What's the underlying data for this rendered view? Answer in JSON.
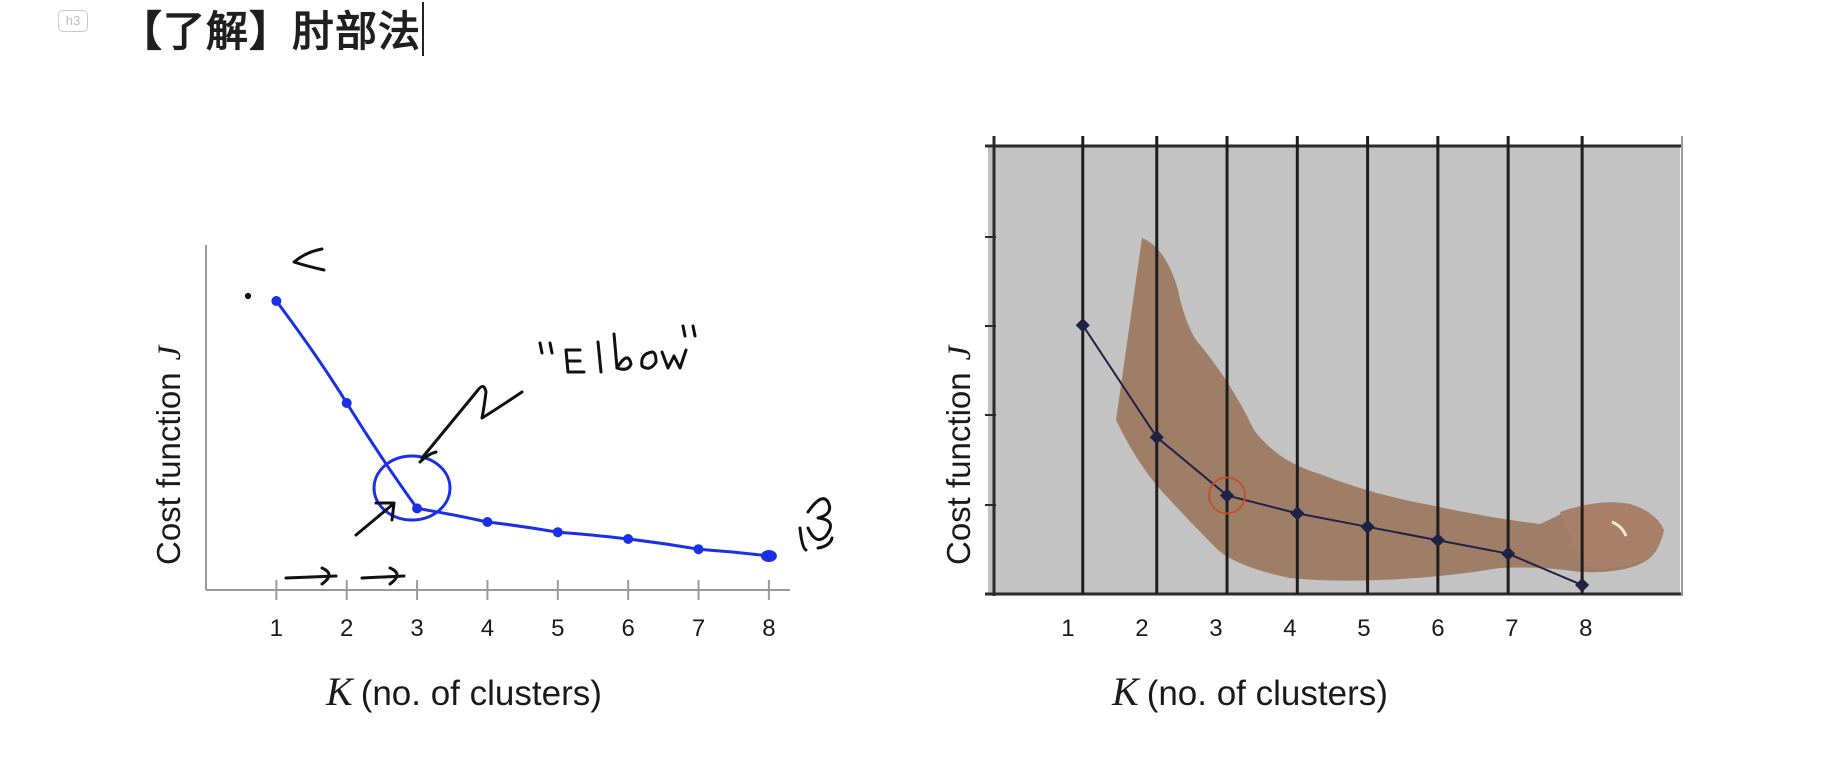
{
  "header": {
    "badge": "h3",
    "title": "【了解】肘部法"
  },
  "chart_data": [
    {
      "type": "line",
      "title": "",
      "ylabel": "Cost function",
      "ylabel_symbol": "J",
      "xlabel_symbol": "K",
      "xlabel": "(no. of clusters)",
      "x": [
        1,
        2,
        3,
        4,
        5,
        6,
        7,
        8
      ],
      "y": [
        8.5,
        5.5,
        2.4,
        2.0,
        1.7,
        1.5,
        1.2,
        1.0
      ],
      "xlim": [
        0,
        8.3
      ],
      "ylim": [
        0,
        10
      ],
      "color": "#1a2fe6",
      "annotations": [
        {
          "text": "“Elbow”"
        }
      ]
    },
    {
      "type": "line",
      "title": "",
      "ylabel": "Cost function",
      "ylabel_symbol": "J",
      "xlabel_symbol": "K",
      "xlabel": "(no. of clusters)",
      "x": [
        1,
        2,
        3,
        4,
        5,
        6,
        7,
        8
      ],
      "y": [
        3.0,
        1.75,
        1.1,
        0.9,
        0.75,
        0.6,
        0.45,
        0.1
      ],
      "xlim": [
        0,
        9.3
      ],
      "ylim": [
        0,
        5
      ],
      "color": "#222244",
      "background": "#c3c3c3",
      "grid": true,
      "highlight_point": 3
    }
  ]
}
